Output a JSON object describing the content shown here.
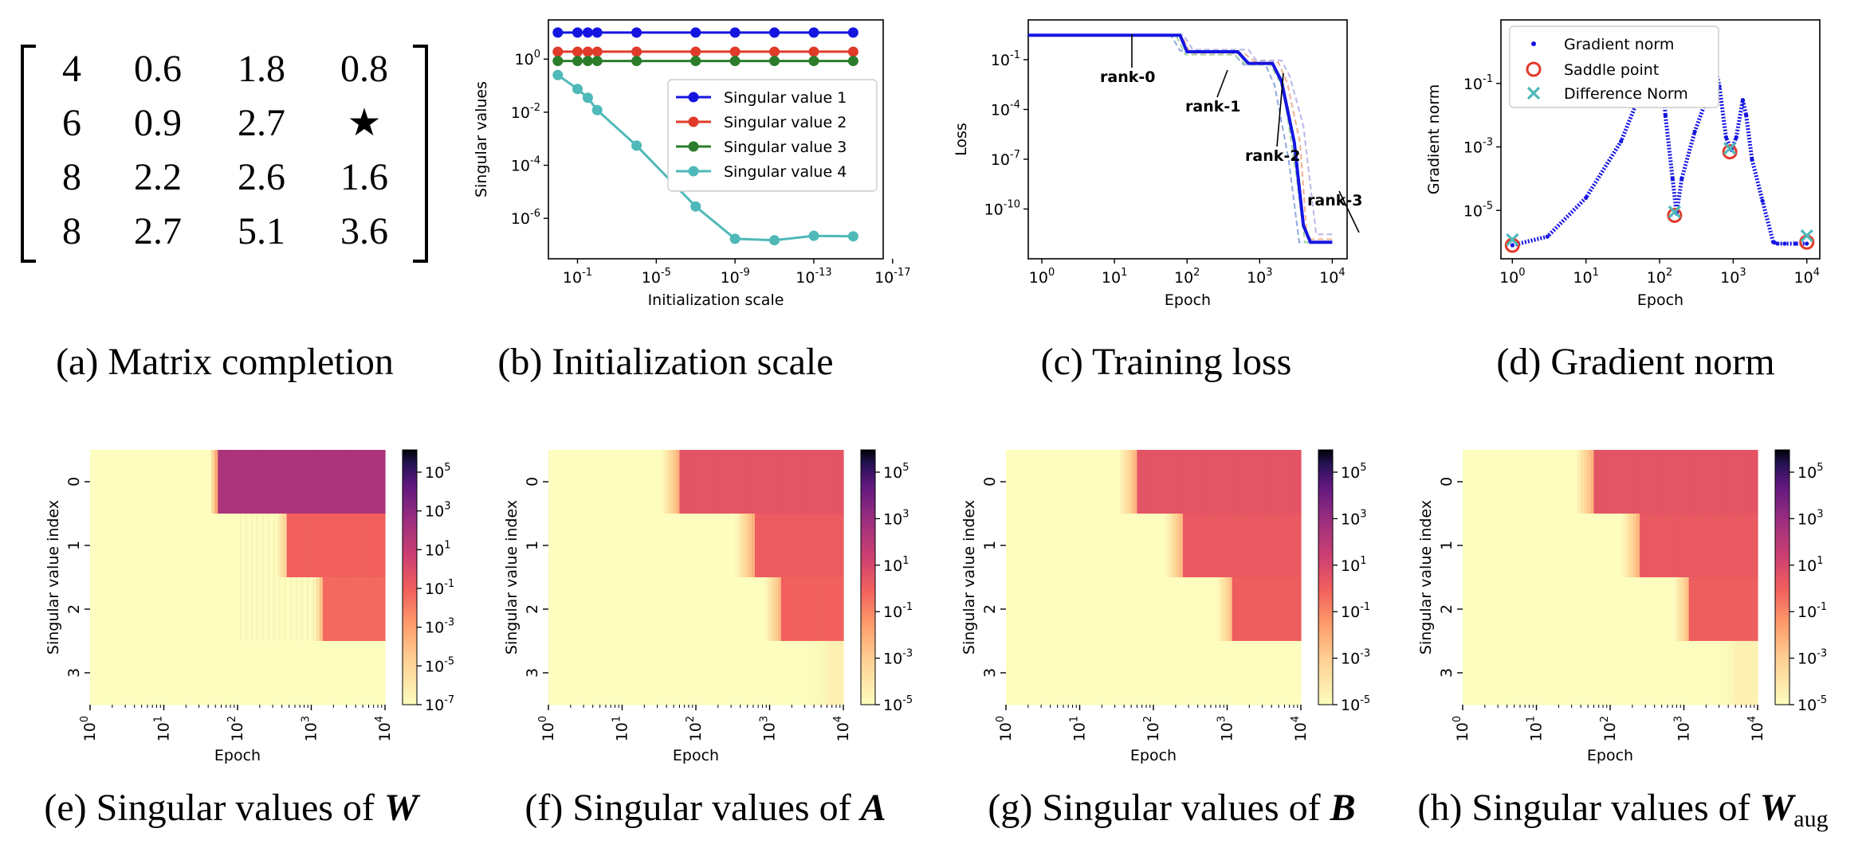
{
  "captions": {
    "a": "(a) Matrix completion",
    "b": "(b) Initialization scale",
    "c": "(c) Training loss",
    "d": "(d) Gradient norm",
    "e_prefix": "(e) Singular values of ",
    "e_sym": "W",
    "e_sub": "",
    "f_prefix": "(f) Singular values of ",
    "f_sym": "A",
    "f_sub": "",
    "g_prefix": "(g) Singular values of ",
    "g_sym": "B",
    "g_sub": "",
    "h_prefix": "(h) Singular values of ",
    "h_sym": "W",
    "h_sub": "aug"
  },
  "matrix": [
    [
      "4",
      "0.6",
      "1.8",
      "0.8"
    ],
    [
      "6",
      "0.9",
      "2.7",
      "★"
    ],
    [
      "8",
      "2.2",
      "2.6",
      "1.6"
    ],
    [
      "8",
      "2.7",
      "5.1",
      "3.6"
    ]
  ],
  "chart_data": [
    {
      "id": "b",
      "type": "line",
      "xlabel": "Initialization scale",
      "ylabel": "Singular values",
      "x_scale": "log-reversed",
      "xlim": [
        3,
        3e-17
      ],
      "ylim": [
        3e-08,
        30
      ],
      "x_ticks": [
        {
          "v": 0.1,
          "t": "10^-1"
        },
        {
          "v": 1e-05,
          "t": "10^-5"
        },
        {
          "v": 1e-09,
          "t": "10^-9"
        },
        {
          "v": 1e-13,
          "t": "10^-13"
        },
        {
          "v": 1e-17,
          "t": "10^-17"
        }
      ],
      "y_ticks": [
        {
          "v": 1,
          "t": "10^0"
        },
        {
          "v": 0.01,
          "t": "10^-2"
        },
        {
          "v": 0.0001,
          "t": "10^-4"
        },
        {
          "v": 1e-06,
          "t": "10^-6"
        }
      ],
      "legend_position": "center-right",
      "x": [
        1,
        0.1,
        0.03,
        0.01,
        0.0001,
        1e-07,
        1e-09,
        1e-11,
        1e-13,
        1e-15
      ],
      "series": [
        {
          "name": "Singular value 1",
          "color": "#1515e0",
          "values": [
            10,
            10,
            10,
            10,
            10,
            10,
            10,
            10,
            10,
            10
          ]
        },
        {
          "name": "Singular value 2",
          "color": "#e03a2a",
          "values": [
            1.9,
            1.9,
            1.9,
            1.9,
            1.9,
            1.9,
            1.9,
            1.9,
            1.9,
            1.9
          ]
        },
        {
          "name": "Singular value 3",
          "color": "#2b7d2b",
          "values": [
            0.85,
            0.85,
            0.85,
            0.85,
            0.85,
            0.85,
            0.85,
            0.85,
            0.85,
            0.85
          ]
        },
        {
          "name": "Singular value 4",
          "color": "#4fb8b8",
          "values": [
            0.25,
            0.075,
            0.035,
            0.012,
            0.00055,
            2.8e-06,
            1.7e-07,
            1.5e-07,
            2.2e-07,
            2.1e-07
          ]
        }
      ]
    },
    {
      "id": "c",
      "type": "line",
      "xlabel": "Epoch",
      "ylabel": "Loss",
      "x_scale": "log",
      "xlim": [
        0.65,
        16000
      ],
      "ylim": [
        1e-13,
        25
      ],
      "x_ticks": [
        {
          "v": 1,
          "t": "10^0"
        },
        {
          "v": 10,
          "t": "10^1"
        },
        {
          "v": 100,
          "t": "10^2"
        },
        {
          "v": 1000,
          "t": "10^3"
        },
        {
          "v": 10000,
          "t": "10^4"
        }
      ],
      "y_ticks": [
        {
          "v": 0.1,
          "t": "10^-1"
        },
        {
          "v": 0.0001,
          "t": "10^-4"
        },
        {
          "v": 1e-07,
          "t": "10^-7"
        },
        {
          "v": 1e-10,
          "t": "10^-10"
        }
      ],
      "main_series": {
        "color": "#1515e0",
        "x": [
          0.65,
          80,
          100,
          500,
          700,
          1500,
          2000,
          3000,
          4000,
          5000,
          10000
        ],
        "y": [
          3,
          3,
          0.3,
          0.3,
          0.06,
          0.06,
          0.005,
          1e-06,
          1e-11,
          1e-12,
          1e-12
        ]
      },
      "faint_series": [
        {
          "color": "#8fa8e0",
          "x": [
            0.65,
            60,
            80,
            400,
            600,
            1200,
            1600,
            2500,
            3500,
            10000
          ],
          "y": [
            3,
            3,
            0.35,
            0.35,
            0.05,
            0.05,
            0.003,
            1e-07,
            1e-12,
            1e-12
          ]
        },
        {
          "color": "#f0b090",
          "x": [
            0.65,
            85,
            110,
            600,
            900,
            1800,
            2400,
            3600,
            4500,
            10000
          ],
          "y": [
            3,
            3,
            0.25,
            0.25,
            0.07,
            0.07,
            0.004,
            1e-06,
            1.5e-12,
            1.5e-12
          ]
        },
        {
          "color": "#a8d8a8",
          "x": [
            0.65,
            70,
            95,
            450,
            650,
            1400,
            2100,
            3200,
            4200,
            10000
          ],
          "y": [
            3,
            3,
            0.2,
            0.2,
            0.05,
            0.05,
            0.002,
            1e-08,
            1e-12,
            1e-12
          ]
        },
        {
          "color": "#b8b8e8",
          "x": [
            0.65,
            90,
            120,
            700,
            900,
            2000,
            2600,
            4000,
            6000,
            10000
          ],
          "y": [
            3,
            3,
            0.4,
            0.4,
            0.09,
            0.09,
            0.01,
            1e-05,
            3e-12,
            3e-12
          ]
        }
      ],
      "annotations": [
        {
          "text": "rank-0",
          "x": 10,
          "y": 0.8
        },
        {
          "text": "rank-1",
          "x": 200,
          "y": 0.018
        },
        {
          "text": "rank-2",
          "x": 1000,
          "y": 0.04
        },
        {
          "text": "rank-3",
          "x": 8000,
          "y": 1e-12
        }
      ]
    },
    {
      "id": "d",
      "type": "scatter",
      "xlabel": "Epoch",
      "ylabel": "Gradient norm",
      "x_scale": "log",
      "xlim": [
        0.7,
        15000
      ],
      "ylim": [
        3e-07,
        10
      ],
      "x_ticks": [
        {
          "v": 1,
          "t": "10^0"
        },
        {
          "v": 10,
          "t": "10^1"
        },
        {
          "v": 100,
          "t": "10^2"
        },
        {
          "v": 1000,
          "t": "10^3"
        },
        {
          "v": 10000,
          "t": "10^4"
        }
      ],
      "y_ticks": [
        {
          "v": 0.1,
          "t": "10^-1"
        },
        {
          "v": 0.001,
          "t": "10^-3"
        },
        {
          "v": 1e-05,
          "t": "10^-5"
        }
      ],
      "legend_position": "upper-left",
      "series": [
        {
          "name": "Gradient norm",
          "color": "#1515e0",
          "marker": "dot",
          "x": [
            1,
            3,
            10,
            30,
            60,
            80,
            100,
            120,
            150,
            170,
            200,
            300,
            450,
            560,
            650,
            800,
            950,
            1100,
            1350,
            1500,
            1800,
            2500,
            3500,
            4000,
            5000,
            7000,
            10000
          ],
          "y": [
            8e-07,
            1.5e-06,
            2.5e-05,
            0.0015,
            0.08,
            2,
            5,
            0.01,
            0.0001,
            8e-06,
            0.0001,
            0.003,
            0.04,
            0.4,
            0.08,
            0.002,
            0.0008,
            0.002,
            0.03,
            0.01,
            0.0004,
            2e-05,
            1e-06,
            9e-07,
            9e-07,
            9e-07,
            9e-07
          ]
        },
        {
          "name": "Saddle point",
          "color": "#e03a2a",
          "marker": "circle",
          "x": [
            1,
            160,
            900,
            10000
          ],
          "y": [
            8e-07,
            7e-06,
            0.0007,
            1e-06
          ]
        },
        {
          "name": "Difference Norm",
          "color": "#4fb8b8",
          "marker": "x",
          "x": [
            1,
            160,
            900,
            10000
          ],
          "y": [
            1.2e-06,
            9e-06,
            0.0009,
            1.6e-06
          ]
        }
      ]
    },
    {
      "id": "e",
      "type": "heatmap",
      "xlabel": "Epoch",
      "ylabel": "Singular value index",
      "rows": [
        "0",
        "1",
        "2",
        "3"
      ],
      "epoch_range": [
        1,
        10000
      ],
      "row_data": [
        {
          "onset": 55,
          "ramp": 0.12,
          "level": 0.68
        },
        {
          "onset": 480,
          "ramp": 0.15,
          "level": 0.45
        },
        {
          "onset": 1400,
          "ramp": 0.12,
          "level": 0.43
        },
        {
          "onset": null,
          "ramp": 0,
          "level": 0
        }
      ],
      "stripes": [
        {
          "row": 1,
          "from": 110,
          "to": 480
        },
        {
          "row": 2,
          "from": 110,
          "to": 1400
        }
      ],
      "colorbar": {
        "labels": [
          "10^5",
          "10^3",
          "10^1",
          "10^-1",
          "10^-3",
          "10^-5",
          "10^-7"
        ]
      }
    },
    {
      "id": "f",
      "type": "heatmap",
      "xlabel": "Epoch",
      "ylabel": "Singular value index",
      "rows": [
        "0",
        "1",
        "2",
        "3"
      ],
      "epoch_range": [
        1,
        10000
      ],
      "row_data": [
        {
          "onset": 60,
          "ramp": 0.25,
          "level": 0.5
        },
        {
          "onset": 600,
          "ramp": 0.25,
          "level": 0.47
        },
        {
          "onset": 1400,
          "ramp": 0.22,
          "level": 0.45
        },
        {
          "onset": 6000,
          "ramp": 0.3,
          "level": 0.05
        }
      ],
      "stripes": [],
      "colorbar": {
        "labels": [
          "10^5",
          "10^3",
          "10^1",
          "10^-1",
          "10^-3",
          "10^-5"
        ]
      }
    },
    {
      "id": "g",
      "type": "heatmap",
      "xlabel": "Epoch",
      "ylabel": "Singular value index",
      "rows": [
        "0",
        "1",
        "2",
        "3"
      ],
      "epoch_range": [
        1,
        10000
      ],
      "row_data": [
        {
          "onset": 60,
          "ramp": 0.25,
          "level": 0.5
        },
        {
          "onset": 250,
          "ramp": 0.25,
          "level": 0.48
        },
        {
          "onset": 1200,
          "ramp": 0.22,
          "level": 0.46
        },
        {
          "onset": null,
          "ramp": 0,
          "level": 0
        }
      ],
      "stripes": [],
      "colorbar": {
        "labels": [
          "10^5",
          "10^3",
          "10^1",
          "10^-1",
          "10^-3",
          "10^-5"
        ]
      }
    },
    {
      "id": "h",
      "type": "heatmap",
      "xlabel": "Epoch",
      "ylabel": "Singular value index",
      "rows": [
        "0",
        "1",
        "2",
        "3"
      ],
      "epoch_range": [
        1,
        10000
      ],
      "row_data": [
        {
          "onset": 60,
          "ramp": 0.25,
          "level": 0.5
        },
        {
          "onset": 250,
          "ramp": 0.25,
          "level": 0.48
        },
        {
          "onset": 1200,
          "ramp": 0.22,
          "level": 0.46
        },
        {
          "onset": 5000,
          "ramp": 0.3,
          "level": 0.05
        }
      ],
      "stripes": [],
      "colorbar": {
        "labels": [
          "10^5",
          "10^3",
          "10^1",
          "10^-1",
          "10^-3",
          "10^-5"
        ]
      }
    }
  ]
}
